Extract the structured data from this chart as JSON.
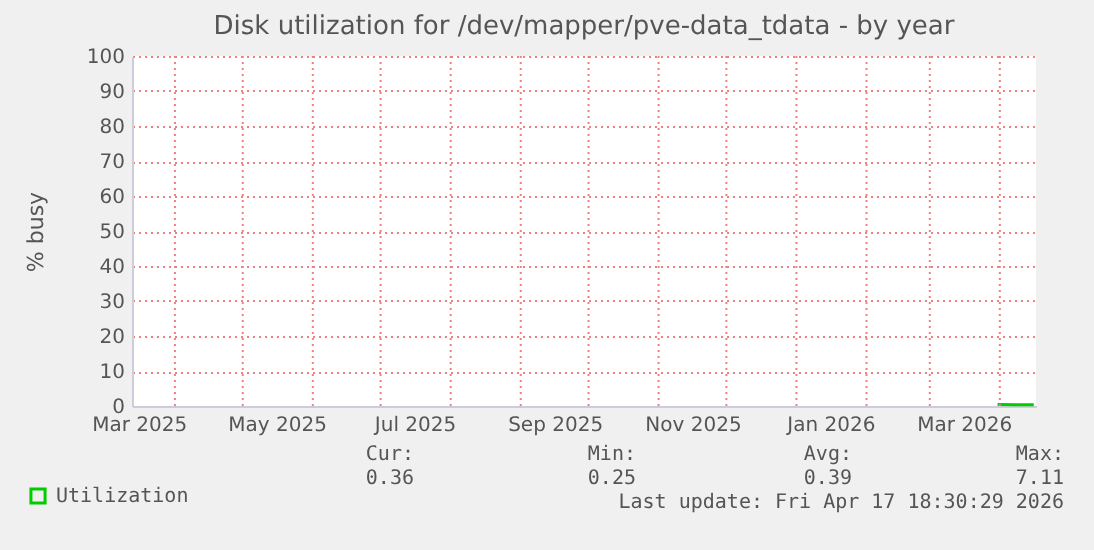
{
  "chart_data": {
    "type": "line",
    "title": "Disk utilization for /dev/mapper/pve-data_tdata - by year",
    "ylabel": "% busy",
    "x": [
      "2026-03-31",
      "2026-04-08",
      "2026-04-16"
    ],
    "series": [
      {
        "name": "Utilization",
        "color": "#00cc00",
        "values": [
          0.4,
          0.39,
          0.36
        ]
      }
    ],
    "xlim": [
      "2025-03-13",
      "2026-04-17"
    ],
    "xticks": [
      {
        "value": "2025-03-16",
        "label": "Mar 2025"
      },
      {
        "value": "2025-05-16",
        "label": "May 2025"
      },
      {
        "value": "2025-07-16",
        "label": "Jul 2025"
      },
      {
        "value": "2025-09-16",
        "label": "Sep 2025"
      },
      {
        "value": "2025-11-16",
        "label": "Nov 2025"
      },
      {
        "value": "2026-01-16",
        "label": "Jan 2026"
      },
      {
        "value": "2026-03-16",
        "label": "Mar 2026"
      },
      {
        "value": "2025-04-01",
        "label": null
      },
      {
        "value": "2025-05-01",
        "label": null
      },
      {
        "value": "2025-06-01",
        "label": null
      },
      {
        "value": "2025-07-01",
        "label": null
      },
      {
        "value": "2025-08-01",
        "label": null
      },
      {
        "value": "2025-09-01",
        "label": null
      },
      {
        "value": "2025-10-01",
        "label": null
      },
      {
        "value": "2025-11-01",
        "label": null
      },
      {
        "value": "2025-12-01",
        "label": null
      },
      {
        "value": "2026-01-01",
        "label": null
      },
      {
        "value": "2026-02-01",
        "label": null
      },
      {
        "value": "2026-03-01",
        "label": null
      },
      {
        "value": "2026-04-01",
        "label": null
      }
    ],
    "ylim": [
      0,
      100
    ],
    "yticks": [
      0,
      10,
      20,
      30,
      40,
      50,
      60,
      70,
      80,
      90,
      100
    ],
    "grid": true,
    "legend": "bottom left",
    "annotations": [
      "Cur:",
      "0.36",
      "Min:",
      "0.25",
      "Avg:",
      "0.39",
      "Max:",
      "7.11",
      "Last update: Fri Apr 17 18:30:29 2026"
    ]
  }
}
